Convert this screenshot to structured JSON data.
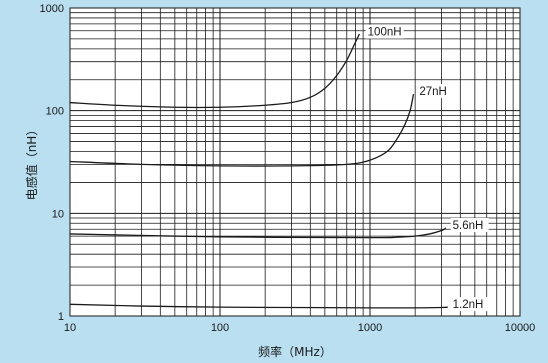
{
  "chart_data": {
    "type": "line",
    "xscale": "log",
    "yscale": "log",
    "xlim": [
      10,
      10000
    ],
    "ylim": [
      1,
      1000
    ],
    "xticks": [
      10,
      100,
      1000,
      10000
    ],
    "xtick_labels": [
      "10",
      "100",
      "1000",
      "10000"
    ],
    "yticks": [
      1,
      10,
      100,
      1000
    ],
    "ytick_labels": [
      "1",
      "10",
      "100",
      "1000"
    ],
    "xlabel": "频率（MHz）",
    "ylabel": "电感值（nH）",
    "grid": true,
    "series": [
      {
        "name": "100nH",
        "x": [
          10,
          20,
          50,
          100,
          200,
          300,
          400,
          500,
          600,
          700,
          780,
          850
        ],
        "y": [
          120,
          113,
          108,
          108,
          113,
          120,
          135,
          165,
          220,
          310,
          430,
          560
        ]
      },
      {
        "name": "27nH",
        "x": [
          10,
          30,
          100,
          300,
          700,
          1000,
          1300,
          1500,
          1700,
          1850,
          1950
        ],
        "y": [
          32,
          30,
          29,
          29,
          30,
          33,
          40,
          52,
          72,
          100,
          145
        ]
      },
      {
        "name": "5.6nH",
        "x": [
          10,
          100,
          1000,
          1500,
          2000,
          2500,
          3000,
          3200
        ],
        "y": [
          6.3,
          5.9,
          5.8,
          5.85,
          6.0,
          6.3,
          6.8,
          7.2
        ]
      },
      {
        "name": "1.2nH",
        "x": [
          10,
          30,
          100,
          300,
          1000,
          2000,
          3000,
          3300
        ],
        "y": [
          1.3,
          1.25,
          1.22,
          1.21,
          1.2,
          1.2,
          1.21,
          1.22
        ]
      }
    ],
    "annotations": [
      {
        "text": "100nH",
        "x": 950,
        "y": 550
      },
      {
        "text": "27nH",
        "x": 2100,
        "y": 145
      },
      {
        "text": "5.6nH",
        "x": 3500,
        "y": 7.2
      },
      {
        "text": "1.2nH",
        "x": 3500,
        "y": 1.22
      }
    ],
    "colors": {
      "background": "#b9dff1",
      "line": "#1a1a1a",
      "grid": "#1a1a1a"
    }
  }
}
